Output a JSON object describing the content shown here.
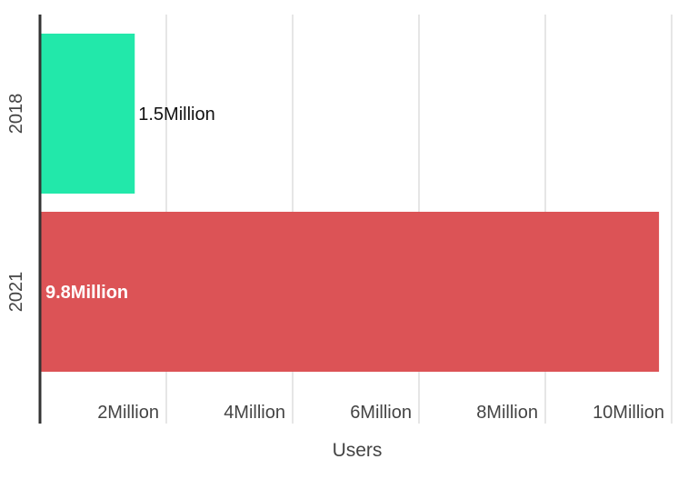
{
  "chart_data": {
    "type": "bar",
    "orientation": "horizontal",
    "categories": [
      "2018",
      "2021"
    ],
    "values": [
      1.5,
      9.8
    ],
    "value_labels": [
      "1.5Million",
      "9.8Million"
    ],
    "colors": [
      "#22e8aa",
      "#dc5356"
    ],
    "xlabel": "Users",
    "ylabel": "",
    "xlim": [
      0,
      10
    ],
    "x_ticks": [
      {
        "value": 2,
        "label": "2Million"
      },
      {
        "value": 4,
        "label": "4Million"
      },
      {
        "value": 6,
        "label": "6Million"
      },
      {
        "value": 8,
        "label": "8Million"
      },
      {
        "value": 10,
        "label": "10Million"
      }
    ],
    "grid": true,
    "legend": "none"
  },
  "colors": {
    "grid": "#dddddd",
    "axis": "#333333",
    "tick_text": "#444444",
    "label_dark": "#111111",
    "label_light": "#ffffff"
  }
}
